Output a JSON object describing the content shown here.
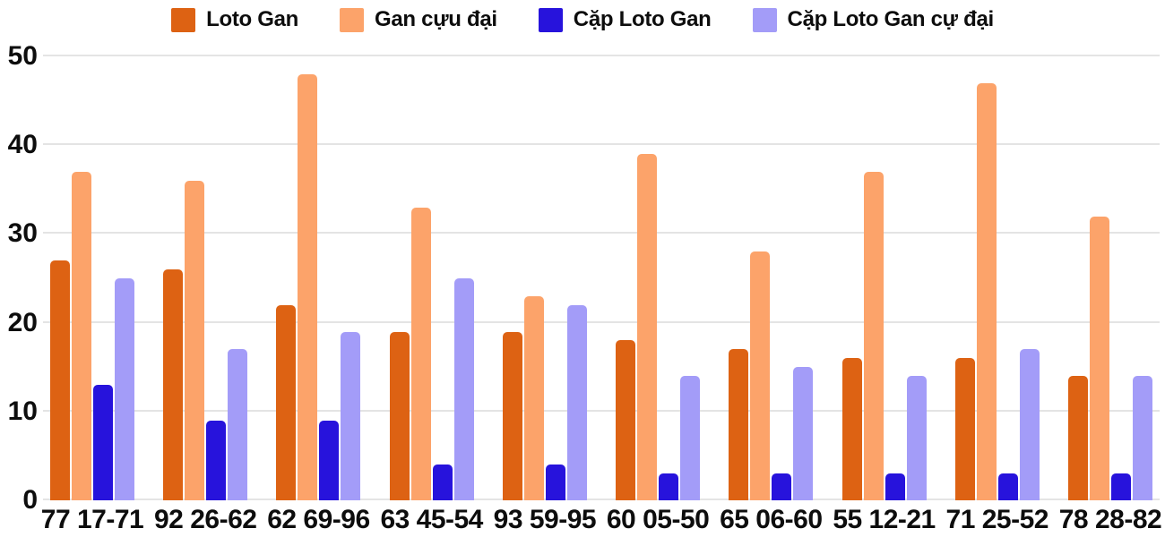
{
  "chart_data": {
    "type": "bar",
    "title": "",
    "xlabel": "",
    "ylabel": "",
    "categories": [
      "77 17-71",
      "92 26-62",
      "62 69-96",
      "63 45-54",
      "93 59-95",
      "60 05-50",
      "65 06-60",
      "55 12-21",
      "71 25-52",
      "78 28-82"
    ],
    "series": [
      {
        "name": "Loto Gan",
        "color": "#dd6213",
        "values": [
          27,
          26,
          22,
          19,
          19,
          18,
          17,
          16,
          16,
          14
        ]
      },
      {
        "name": "Gan cựu đại",
        "color": "#fca36a",
        "values": [
          37,
          36,
          48,
          33,
          23,
          39,
          28,
          37,
          47,
          32
        ]
      },
      {
        "name": "Cặp Loto Gan",
        "color": "#2713dc",
        "values": [
          13,
          9,
          9,
          4,
          4,
          3,
          3,
          3,
          3,
          3
        ]
      },
      {
        "name": "Cặp Loto Gan cự đại",
        "color": "#a39cf8",
        "values": [
          25,
          17,
          19,
          25,
          22,
          14,
          15,
          14,
          17,
          14
        ]
      }
    ],
    "ylim": [
      0,
      50
    ],
    "yticks": [
      0,
      10,
      20,
      30,
      40,
      50
    ],
    "grid": true,
    "legend_position": "top",
    "background_color": "#ffffff",
    "gridline_color": "#e4e4e4",
    "text_color": "#0d0d0d"
  }
}
